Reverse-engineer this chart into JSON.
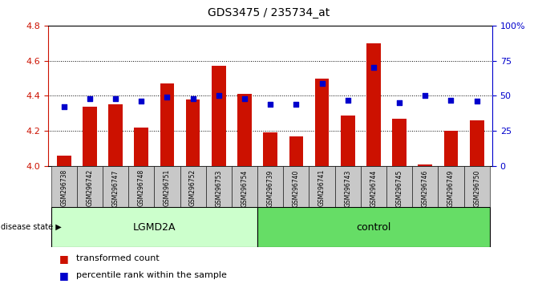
{
  "title": "GDS3475 / 235734_at",
  "samples": [
    "GSM296738",
    "GSM296742",
    "GSM296747",
    "GSM296748",
    "GSM296751",
    "GSM296752",
    "GSM296753",
    "GSM296754",
    "GSM296739",
    "GSM296740",
    "GSM296741",
    "GSM296743",
    "GSM296744",
    "GSM296745",
    "GSM296746",
    "GSM296749",
    "GSM296750"
  ],
  "bar_values": [
    4.06,
    4.34,
    4.35,
    4.22,
    4.47,
    4.38,
    4.57,
    4.41,
    4.19,
    4.17,
    4.5,
    4.29,
    4.7,
    4.27,
    4.01,
    4.2,
    4.26
  ],
  "pct_values": [
    42,
    48,
    48,
    46,
    49,
    48,
    50,
    48,
    44,
    44,
    59,
    47,
    70,
    45,
    50,
    47,
    46
  ],
  "lgmd2a_count": 8,
  "control_count": 9,
  "ylim_left": [
    4.0,
    4.8
  ],
  "ylim_right": [
    0,
    100
  ],
  "yticks_left": [
    4.0,
    4.2,
    4.4,
    4.6,
    4.8
  ],
  "yticks_right": [
    0,
    25,
    50,
    75,
    100
  ],
  "bar_color": "#CC1100",
  "dot_color": "#0000CC",
  "lgmd2a_color": "#CCFFCC",
  "control_color": "#66DD66",
  "disease_state_label": "disease state",
  "lgmd2a_label": "LGMD2A",
  "control_label": "control",
  "legend_bar_label": "transformed count",
  "legend_dot_label": "percentile rank within the sample",
  "background_color": "#FFFFFF",
  "left_axis_color": "#CC1100",
  "right_axis_color": "#0000CC",
  "xtick_gray": "#C8C8C8"
}
